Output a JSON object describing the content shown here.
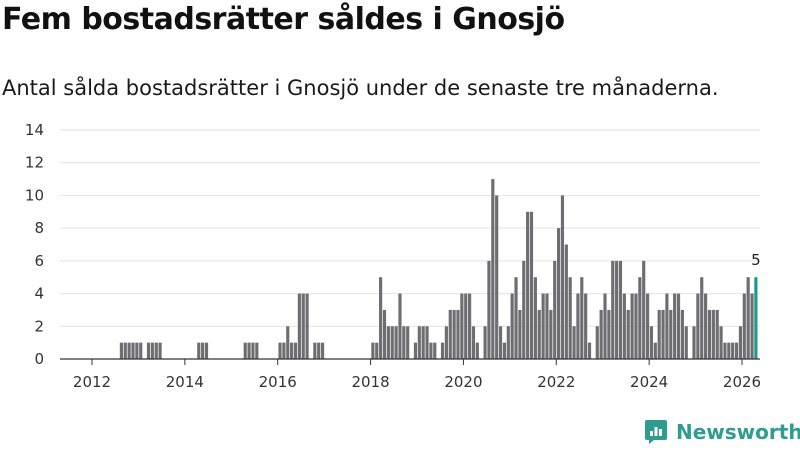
{
  "header": {
    "title": "Fem bostadsrätter såldes i Gnosjö",
    "subtitle": "Antal sålda bostadsrätter i Gnosjö under de senaste tre månaderna."
  },
  "brand": {
    "name": "Newsworthy",
    "icon": "newsworthy-logo-icon",
    "color": "#2e9c8f"
  },
  "colors": {
    "bar": "#6e6d72",
    "highlight": "#1a9a8c",
    "grid": "#e2e2e2",
    "axis": "#333333"
  },
  "chart_data": {
    "type": "bar",
    "title": "Fem bostadsrätter såldes i Gnosjö",
    "subtitle": "Antal sålda bostadsrätter i Gnosjö under de senaste tre månaderna.",
    "xlabel": "",
    "ylabel": "",
    "ylim": [
      0,
      14
    ],
    "yticks": [
      0,
      2,
      4,
      6,
      8,
      10,
      12,
      14
    ],
    "xticks": [
      2012,
      2014,
      2016,
      2018,
      2020,
      2022,
      2024,
      2026
    ],
    "grid": true,
    "x_start": 2011.3,
    "x_step": 0.08333,
    "values": [
      0,
      0,
      0,
      0,
      0,
      0,
      0,
      0,
      0,
      0,
      0,
      0,
      0,
      0,
      0,
      0,
      1,
      1,
      1,
      1,
      1,
      1,
      0,
      1,
      1,
      1,
      1,
      0,
      0,
      0,
      0,
      0,
      0,
      0,
      0,
      0,
      1,
      1,
      1,
      0,
      0,
      0,
      0,
      0,
      0,
      0,
      0,
      0,
      1,
      1,
      1,
      1,
      0,
      0,
      0,
      0,
      0,
      1,
      1,
      2,
      1,
      1,
      4,
      4,
      4,
      0,
      1,
      1,
      1,
      0,
      0,
      0,
      0,
      0,
      0,
      0,
      0,
      0,
      0,
      0,
      0,
      1,
      1,
      5,
      3,
      2,
      2,
      2,
      4,
      2,
      2,
      0,
      1,
      2,
      2,
      2,
      1,
      1,
      0,
      1,
      2,
      3,
      3,
      3,
      4,
      4,
      4,
      2,
      1,
      0,
      2,
      6,
      11,
      10,
      2,
      1,
      2,
      4,
      5,
      3,
      6,
      9,
      9,
      5,
      3,
      4,
      4,
      3,
      6,
      8,
      10,
      7,
      5,
      2,
      4,
      5,
      4,
      1,
      0,
      2,
      3,
      4,
      3,
      6,
      6,
      6,
      4,
      3,
      4,
      4,
      5,
      6,
      4,
      2,
      1,
      3,
      3,
      4,
      3,
      4,
      4,
      3,
      2,
      0,
      2,
      4,
      5,
      4,
      3,
      3,
      3,
      2,
      1,
      1,
      1,
      1,
      2,
      4,
      5,
      4,
      5
    ],
    "highlight_last": true,
    "annotations": [
      {
        "label": "5",
        "target": "last-bar"
      }
    ]
  }
}
